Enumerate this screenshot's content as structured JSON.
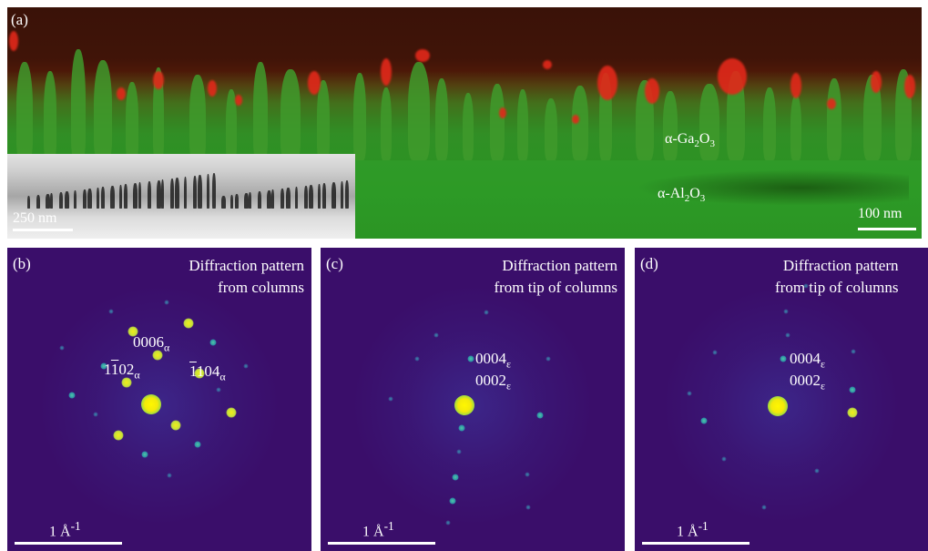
{
  "panel_a": {
    "label": "(a)",
    "layer_label": {
      "prefix": "α-Ga",
      "sub1": "2",
      "mid": "O",
      "sub2": "3"
    },
    "substrate_label": {
      "prefix": "α-Al",
      "sub1": "2",
      "mid": "O",
      "sub2": "3"
    },
    "scalebar_main": "100 nm",
    "scalebar_inset": "250 nm"
  },
  "panel_b": {
    "label": "(b)",
    "title_line1": "Diffraction pattern",
    "title_line2": "from columns",
    "indices": [
      {
        "text": "0006",
        "sub": "α"
      },
      {
        "text_pre": "1",
        "text_over": "1",
        "text_post": "02",
        "sub": "α"
      },
      {
        "text_pre": "",
        "text_over": "1",
        "text_post": "104",
        "sub": "α"
      }
    ],
    "scalebar": {
      "text": "1 Å",
      "sup": "-1"
    }
  },
  "panel_c": {
    "label": "(c)",
    "title_line1": "Diffraction pattern",
    "title_line2": "from tip of columns",
    "indices": [
      {
        "text": "0004",
        "sub": "ε"
      },
      {
        "text": "0002",
        "sub": "ε"
      }
    ],
    "scalebar": {
      "text": "1 Å",
      "sup": "-1"
    }
  },
  "panel_d": {
    "label": "(d)",
    "title_line1": "Diffraction pattern",
    "title_line2": "from tip of columns",
    "indices": [
      {
        "text": "0004",
        "sub": "ε"
      },
      {
        "text": "0002",
        "sub": "ε"
      }
    ],
    "scalebar": {
      "text": "1 Å",
      "sup": "-1"
    }
  },
  "colors": {
    "ga2o3_green": "#3f9a2c",
    "alpha_phase_red": "#e2281a",
    "diffraction_background": "#3a0e6a",
    "bright_spot": "#fff700"
  }
}
